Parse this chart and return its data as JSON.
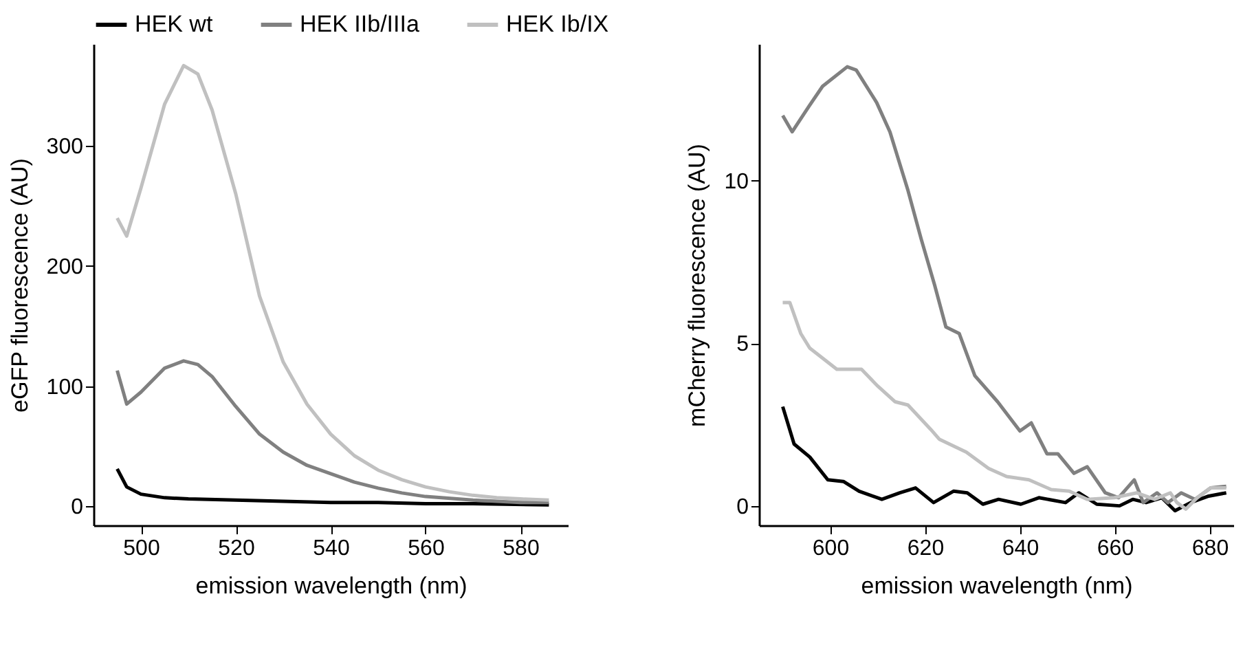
{
  "chart_data": [
    {
      "type": "line",
      "xlabel": "emission wavelength (nm)",
      "ylabel": "eGFP fluorescence (AU)",
      "xlim": [
        490,
        590
      ],
      "ylim": [
        -16,
        385
      ],
      "xticks": [
        500,
        520,
        540,
        560,
        580
      ],
      "yticks": [
        0,
        100,
        200,
        300
      ],
      "legend": "top",
      "series": [
        {
          "name": "HEK wt",
          "color": "#000000",
          "x": [
            495,
            497,
            500,
            505,
            510,
            520,
            530,
            540,
            550,
            560,
            570,
            586
          ],
          "values": [
            31,
            16,
            10,
            7,
            6,
            5,
            4,
            3,
            3,
            2,
            2,
            1
          ]
        },
        {
          "name": "HEK IIb/IIIa",
          "color": "#808080",
          "x": [
            495,
            497,
            500,
            505,
            509,
            512,
            515,
            520,
            525,
            530,
            535,
            540,
            545,
            550,
            555,
            560,
            570,
            580,
            586
          ],
          "values": [
            113,
            85,
            95,
            115,
            121,
            118,
            108,
            83,
            60,
            45,
            34,
            27,
            20,
            15,
            11,
            8,
            5,
            3,
            3
          ]
        },
        {
          "name": "HEK Ib/IX",
          "color": "#c0c0c0",
          "x": [
            495,
            497,
            500,
            505,
            509,
            512,
            515,
            520,
            525,
            530,
            535,
            540,
            545,
            550,
            555,
            560,
            565,
            570,
            575,
            580,
            586
          ],
          "values": [
            240,
            225,
            265,
            335,
            367,
            360,
            330,
            260,
            175,
            120,
            85,
            60,
            42,
            30,
            22,
            16,
            12,
            9,
            7,
            6,
            5
          ]
        }
      ]
    },
    {
      "type": "line",
      "xlabel": "emission wavelength (nm)",
      "ylabel": "mCherry fluorescence (AU)",
      "xlim": [
        585,
        685
      ],
      "ylim": [
        -0.6,
        14.2
      ],
      "xticks": [
        600,
        620,
        640,
        660,
        680
      ],
      "yticks": [
        0,
        5,
        10
      ],
      "series": [
        {
          "color": "#000000",
          "x": [
            590,
            592.4,
            595.7,
            599.5,
            602.8,
            606.1,
            610.9,
            614.7,
            618,
            621.8,
            626,
            628.9,
            632.2,
            635.5,
            640.2,
            644,
            649.6,
            652.4,
            656.2,
            661,
            663.8,
            666.6,
            669.9,
            672.7,
            676,
            679.8,
            683.5
          ],
          "values": [
            3.05,
            1.9,
            1.5,
            0.8,
            0.75,
            0.45,
            0.2,
            0.4,
            0.55,
            0.1,
            0.45,
            0.4,
            0.05,
            0.2,
            0.05,
            0.25,
            0.1,
            0.4,
            0.05,
            0,
            0.2,
            0.1,
            0.25,
            -0.15,
            0.1,
            0.3,
            0.4
          ]
        },
        {
          "color": "#808080",
          "x": [
            590,
            592,
            595.6,
            598.4,
            603.6,
            605.5,
            609.8,
            612.6,
            616.4,
            619.2,
            622,
            624.4,
            627.2,
            630.5,
            635.3,
            640,
            642.4,
            645.7,
            648,
            651.4,
            654.2,
            658,
            660.8,
            664.1,
            666,
            668.9,
            671.2,
            674,
            676.9,
            680.2,
            683.5
          ],
          "values": [
            12.0,
            11.5,
            12.3,
            12.9,
            13.5,
            13.4,
            12.4,
            11.5,
            9.7,
            8.2,
            6.8,
            5.5,
            5.3,
            4.0,
            3.2,
            2.3,
            2.55,
            1.6,
            1.6,
            1.0,
            1.2,
            0.4,
            0.25,
            0.8,
            0.1,
            0.4,
            0.1,
            0.4,
            0.2,
            0.55,
            0.6
          ]
        },
        {
          "color": "#c0c0c0",
          "x": [
            590,
            591.5,
            593.8,
            595.7,
            601.4,
            606.6,
            609.9,
            613.7,
            616.4,
            621.2,
            623,
            628.7,
            633.4,
            637.2,
            641.9,
            646.6,
            650.4,
            654.2,
            659.9,
            664.6,
            668.4,
            671.7,
            673.1,
            675,
            677.4,
            680.2,
            683.5
          ],
          "values": [
            6.25,
            6.25,
            5.3,
            4.85,
            4.2,
            4.2,
            3.7,
            3.2,
            3.1,
            2.35,
            2.05,
            1.65,
            1.15,
            0.9,
            0.8,
            0.5,
            0.45,
            0.2,
            0.25,
            0.4,
            0.2,
            0.4,
            0.1,
            -0.1,
            0.25,
            0.55,
            0.55
          ]
        }
      ]
    }
  ]
}
